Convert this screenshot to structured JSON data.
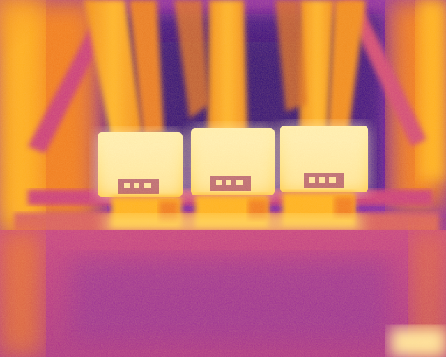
{
  "image": {
    "kind": "thermal-infrared-photo",
    "subject": "three-phase-busbar-connections",
    "palette": "ironbow",
    "palette_colors": {
      "cold": "#3a0a86",
      "cool": "#7a1fb0",
      "mid": "#c8387e",
      "warm": "#f07a1a",
      "hot": "#ffb21e",
      "hottest": "#fff6c8"
    },
    "hotspot_count": 3
  }
}
